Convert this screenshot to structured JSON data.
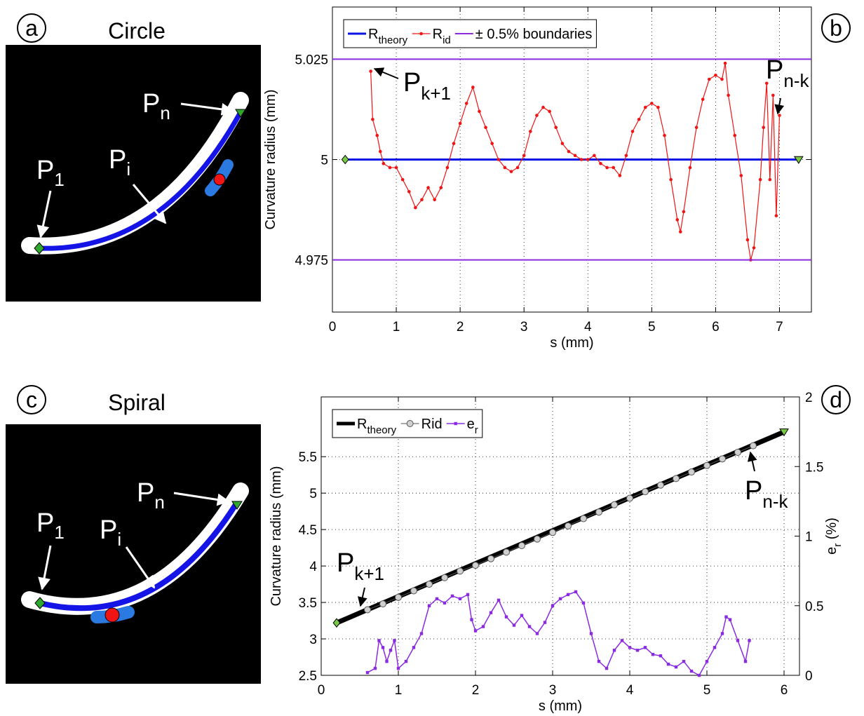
{
  "panels": [
    {
      "label": "a",
      "title": "Circle",
      "annotations": [
        {
          "text": "P",
          "sub": "n"
        },
        {
          "text": "P",
          "sub": "i"
        },
        {
          "text": "P",
          "sub": "1"
        }
      ]
    },
    {
      "label": "c",
      "title": "Spiral",
      "annotations": [
        {
          "text": "P",
          "sub": "n"
        },
        {
          "text": "P",
          "sub": "i"
        },
        {
          "text": "P",
          "sub": "1"
        }
      ]
    }
  ],
  "chart_data": [
    {
      "type": "line",
      "panel_label": "b",
      "xlabel": "s (mm)",
      "ylabel": "Curvature radius (mm)",
      "xlim": [
        0,
        7.5
      ],
      "xticks": [
        0,
        1,
        2,
        3,
        4,
        5,
        6,
        7
      ],
      "ylim": [
        4.962,
        5.038
      ],
      "yticks": [
        4.975,
        5,
        5.025
      ],
      "grid": true,
      "annotations": [
        {
          "text": "P",
          "sub": "k+1"
        },
        {
          "text": "P",
          "sub": "n-k"
        }
      ],
      "series": [
        {
          "name": "R",
          "sub": "theory",
          "color": "#0a14e6",
          "line_width": 3,
          "start_marker": "diamond",
          "end_marker": "triangle",
          "marker_color": "#7ac943",
          "x": [
            0.2,
            7.3
          ],
          "values": [
            5,
            5
          ]
        },
        {
          "name": "R",
          "sub": "id",
          "color": "#f01414",
          "line_width": 1.2,
          "marker": "dot",
          "x": [
            0.6,
            0.63,
            0.7,
            0.75,
            0.8,
            0.9,
            1.0,
            1.1,
            1.2,
            1.3,
            1.4,
            1.5,
            1.6,
            1.7,
            1.8,
            1.9,
            2.0,
            2.1,
            2.2,
            2.3,
            2.4,
            2.5,
            2.6,
            2.7,
            2.8,
            2.9,
            3.0,
            3.1,
            3.2,
            3.3,
            3.4,
            3.5,
            3.6,
            3.7,
            3.8,
            3.9,
            4.0,
            4.1,
            4.2,
            4.3,
            4.4,
            4.5,
            4.6,
            4.7,
            4.8,
            4.9,
            5.0,
            5.1,
            5.2,
            5.3,
            5.4,
            5.45,
            5.5,
            5.6,
            5.7,
            5.8,
            5.9,
            6.0,
            6.1,
            6.15,
            6.2,
            6.3,
            6.4,
            6.5,
            6.55,
            6.6,
            6.7,
            6.75,
            6.8,
            6.85,
            6.9,
            6.95,
            7.0
          ],
          "values": [
            5.022,
            5.01,
            5.006,
            5.002,
            4.999,
            4.998,
            4.998,
            4.995,
            4.992,
            4.988,
            4.99,
            4.993,
            4.99,
            4.993,
            4.998,
            5.004,
            5.009,
            5.014,
            5.018,
            5.012,
            5.008,
            5.004,
            5.0,
            4.998,
            4.997,
            4.998,
            5.001,
            5.007,
            5.011,
            5.013,
            5.012,
            5.008,
            5.004,
            5.002,
            5.001,
            5.0,
            5.0,
            5.001,
            4.999,
            4.998,
            4.998,
            4.996,
            5.001,
            5.007,
            5.01,
            5.013,
            5.014,
            5.013,
            5.006,
            4.995,
            4.985,
            4.982,
            4.987,
            4.998,
            5.008,
            5.015,
            5.02,
            5.021,
            5.02,
            5.024,
            5.016,
            5.006,
            4.996,
            4.98,
            4.975,
            4.978,
            4.995,
            5.008,
            5.019,
            4.995,
            5.016,
            4.986,
            5.011
          ]
        },
        {
          "name": "± 0.5% boundaries",
          "color": "#8a2be2",
          "line_width": 2,
          "x": [
            0,
            7.5
          ],
          "values": [
            5.025,
            5.025
          ],
          "lower": [
            4.975,
            4.975
          ]
        }
      ]
    },
    {
      "type": "line",
      "panel_label": "d",
      "xlabel": "s (mm)",
      "ylabel": "Curvature radius (mm)",
      "y2label": {
        "text": "e",
        "sub": "r",
        "suffix": " (%)"
      },
      "xlim": [
        0,
        6.2
      ],
      "xticks": [
        0,
        1,
        2,
        3,
        4,
        5,
        6
      ],
      "ylim": [
        2.5,
        6.32
      ],
      "yticks": [
        2.5,
        3,
        3.5,
        4,
        4.5,
        5,
        5.5
      ],
      "y2lim": [
        0,
        2
      ],
      "y2ticks": [
        0,
        0.5,
        1,
        1.5,
        2
      ],
      "grid": true,
      "annotations": [
        {
          "text": "P",
          "sub": "k+1"
        },
        {
          "text": "P",
          "sub": "n-k"
        }
      ],
      "series": [
        {
          "name": "R",
          "sub": "theory",
          "color": "#000000",
          "line_width": 7,
          "start_marker": "diamond",
          "end_marker": "triangle",
          "marker_color": "#7ac943",
          "x": [
            0.2,
            6.0
          ],
          "values": [
            3.22,
            5.84
          ]
        },
        {
          "name": "Rid",
          "color": "#555555",
          "line_width": 1,
          "marker": "circle",
          "marker_color": "#d0d0d0",
          "x": [
            0.6,
            0.8,
            1.0,
            1.2,
            1.4,
            1.6,
            1.8,
            2.0,
            2.2,
            2.4,
            2.6,
            2.8,
            3.0,
            3.2,
            3.4,
            3.6,
            3.8,
            4.0,
            4.2,
            4.4,
            4.6,
            4.8,
            5.0,
            5.2,
            5.4,
            5.6
          ],
          "values": [
            3.4,
            3.48,
            3.57,
            3.66,
            3.75,
            3.84,
            3.93,
            4.01,
            4.1,
            4.19,
            4.28,
            4.37,
            4.46,
            4.55,
            4.65,
            4.74,
            4.84,
            4.93,
            5.02,
            5.11,
            5.2,
            5.29,
            5.38,
            5.47,
            5.56,
            5.65
          ]
        },
        {
          "name": "e",
          "sub": "r",
          "color": "#8a2be2",
          "line_width": 1.5,
          "marker": "square",
          "axis": "y2",
          "x": [
            0.6,
            0.7,
            0.75,
            0.8,
            0.85,
            0.9,
            0.95,
            1.0,
            1.1,
            1.2,
            1.3,
            1.4,
            1.5,
            1.6,
            1.7,
            1.8,
            1.9,
            1.95,
            2.0,
            2.1,
            2.2,
            2.3,
            2.4,
            2.5,
            2.6,
            2.7,
            2.8,
            2.9,
            3.0,
            3.1,
            3.2,
            3.3,
            3.4,
            3.5,
            3.6,
            3.7,
            3.8,
            3.9,
            4.0,
            4.1,
            4.2,
            4.3,
            4.4,
            4.5,
            4.6,
            4.7,
            4.8,
            4.9,
            5.0,
            5.1,
            5.2,
            5.25,
            5.3,
            5.4,
            5.5,
            5.55
          ],
          "values": [
            0.02,
            0.05,
            0.25,
            0.2,
            0.1,
            0.18,
            0.25,
            0.05,
            0.1,
            0.2,
            0.3,
            0.5,
            0.55,
            0.52,
            0.57,
            0.55,
            0.58,
            0.4,
            0.32,
            0.35,
            0.45,
            0.54,
            0.42,
            0.36,
            0.43,
            0.35,
            0.3,
            0.38,
            0.5,
            0.55,
            0.58,
            0.6,
            0.52,
            0.3,
            0.1,
            0.05,
            0.18,
            0.25,
            0.2,
            0.18,
            0.2,
            0.15,
            0.14,
            0.08,
            0.06,
            0.1,
            0.03,
            0.0,
            0.1,
            0.2,
            0.3,
            0.42,
            0.4,
            0.25,
            0.1,
            0.25
          ]
        }
      ]
    }
  ]
}
